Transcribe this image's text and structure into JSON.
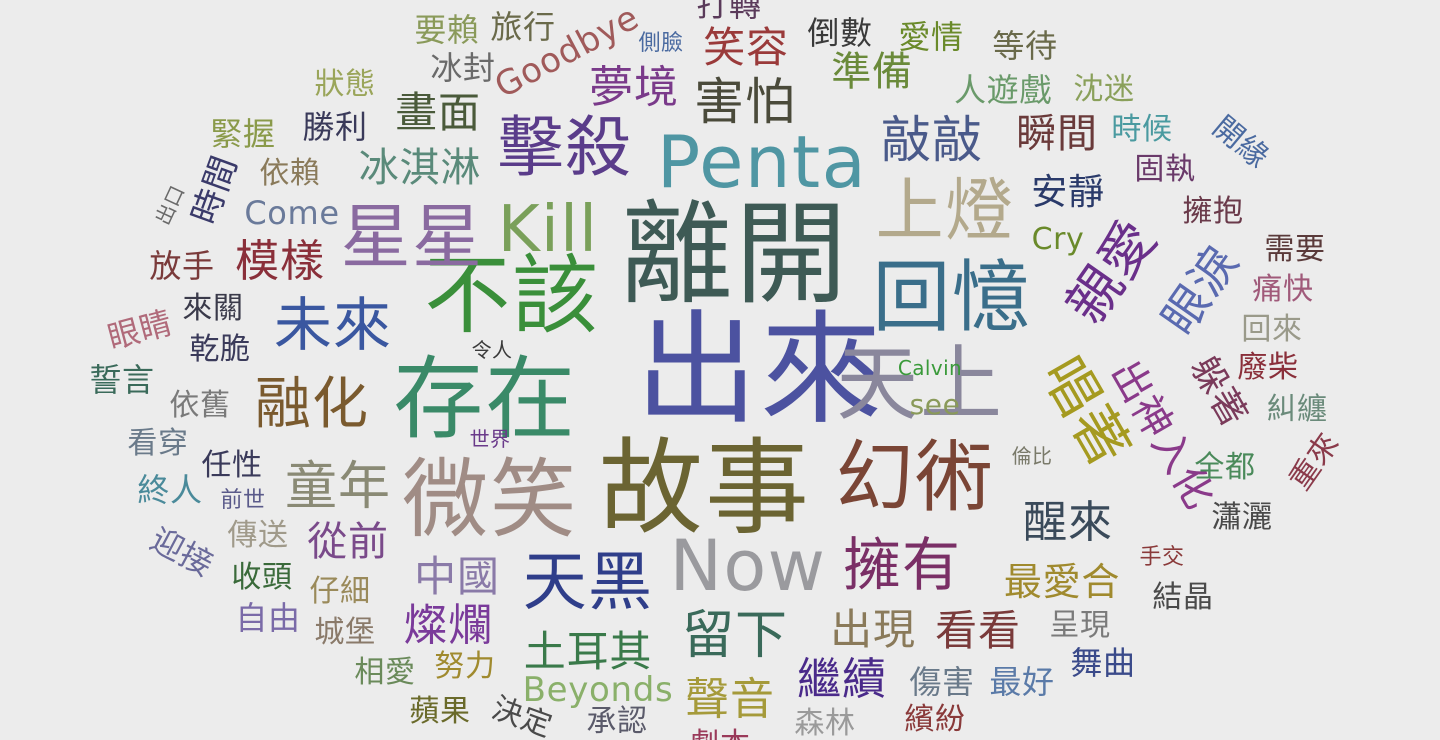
{
  "words": [
    {
      "text": "出來",
      "color": "#4c52a0"
    },
    {
      "text": "離開",
      "color": "#3e5a55"
    },
    {
      "text": "故事",
      "color": "#6b6432"
    },
    {
      "text": "存在",
      "color": "#3a8a68"
    },
    {
      "text": "微笑",
      "color": "#a08c85"
    },
    {
      "text": "幻術",
      "color": "#7a4535"
    },
    {
      "text": "天上",
      "color": "#8a879c"
    },
    {
      "text": "Penta",
      "color": "#4f96a3"
    },
    {
      "text": "不該",
      "color": "#3a8f3a"
    },
    {
      "text": "回憶",
      "color": "#3a6e8a"
    },
    {
      "text": "Kill",
      "color": "#7aa05a"
    },
    {
      "text": "星星",
      "color": "#8a6aa0"
    },
    {
      "text": "擊殺",
      "color": "#5a3c8a"
    },
    {
      "text": "上燈",
      "color": "#b3a98c"
    },
    {
      "text": "未來",
      "color": "#3a57a0"
    },
    {
      "text": "融化",
      "color": "#7a5a2e"
    },
    {
      "text": "Now",
      "color": "#9a9a9e"
    },
    {
      "text": "擁有",
      "color": "#7a2f66"
    },
    {
      "text": "天黑",
      "color": "#2f3e8a"
    },
    {
      "text": "唱著",
      "color": "#a59a20"
    },
    {
      "text": "親愛",
      "color": "#6a2f8a"
    },
    {
      "text": "童年",
      "color": "#8a8a75"
    },
    {
      "text": "留下",
      "color": "#3a6a5a"
    },
    {
      "text": "害怕",
      "color": "#4a4a3a"
    },
    {
      "text": "敲敲",
      "color": "#4a5a8a"
    },
    {
      "text": "醒來",
      "color": "#3a4a5a"
    },
    {
      "text": "眼淚",
      "color": "#5a6ab0"
    },
    {
      "text": "出神入化",
      "color": "#8a3a8a"
    },
    {
      "text": "躲著",
      "color": "#7a3a5a"
    },
    {
      "text": "笑容",
      "color": "#9a3a3a"
    },
    {
      "text": "夢境",
      "color": "#7a3a8a"
    },
    {
      "text": "準備",
      "color": "#6a8a3a"
    },
    {
      "text": "瞬間",
      "color": "#6a3a3a"
    },
    {
      "text": "畫面",
      "color": "#4a5a3a"
    },
    {
      "text": "冰淇淋",
      "color": "#5a8a7a"
    },
    {
      "text": "模樣",
      "color": "#8a2f3a"
    },
    {
      "text": "中國",
      "color": "#8a7aa8"
    },
    {
      "text": "燦爛",
      "color": "#7a3a9a"
    },
    {
      "text": "土耳其",
      "color": "#3a7a4a"
    },
    {
      "text": "聲音",
      "color": "#a59a3a"
    },
    {
      "text": "繼續",
      "color": "#4a2a8a"
    },
    {
      "text": "出現",
      "color": "#8a7a5a"
    },
    {
      "text": "看看",
      "color": "#7a3a3a"
    },
    {
      "text": "最愛合",
      "color": "#a08a2e"
    },
    {
      "text": "從前",
      "color": "#7a4a8a"
    },
    {
      "text": "安靜",
      "color": "#2a3a6a"
    },
    {
      "text": "Goodbye",
      "color": "#a05a5a"
    },
    {
      "text": "Beyonds",
      "color": "#8ab06a"
    },
    {
      "text": "Come",
      "color": "#6a7a9a"
    },
    {
      "text": "Cry",
      "color": "#6a8a2a"
    },
    {
      "text": "see",
      "color": "#8a9a5a"
    },
    {
      "text": "Calvin",
      "color": "#3a9a3a"
    },
    {
      "text": "要賴",
      "color": "#8a9a5a"
    },
    {
      "text": "旅行",
      "color": "#6a6a4a"
    },
    {
      "text": "冰封",
      "color": "#6a6a6a"
    },
    {
      "text": "狀態",
      "color": "#9aa55a"
    },
    {
      "text": "勝利",
      "color": "#3a3a5a"
    },
    {
      "text": "緊握",
      "color": "#8a9a4a"
    },
    {
      "text": "依賴",
      "color": "#8a7a5a"
    },
    {
      "text": "時間",
      "color": "#3a3a6a"
    },
    {
      "text": "出口",
      "color": "#6a6a6a"
    },
    {
      "text": "放手",
      "color": "#7a3a3a"
    },
    {
      "text": "來關",
      "color": "#3a3a4a"
    },
    {
      "text": "眼睛",
      "color": "#b06a7a"
    },
    {
      "text": "乾脆",
      "color": "#3a3a5a"
    },
    {
      "text": "誓言",
      "color": "#3a6a5a"
    },
    {
      "text": "依舊",
      "color": "#7a7a7a"
    },
    {
      "text": "看穿",
      "color": "#6a7a8a"
    },
    {
      "text": "任性",
      "color": "#3a3a5a"
    },
    {
      "text": "終人",
      "color": "#4a8a9a"
    },
    {
      "text": "前世",
      "color": "#5a5a8a"
    },
    {
      "text": "傳送",
      "color": "#a09a8a"
    },
    {
      "text": "迎接",
      "color": "#6a6a9a"
    },
    {
      "text": "收頭",
      "color": "#3a6a3a"
    },
    {
      "text": "仔細",
      "color": "#9a8a5a"
    },
    {
      "text": "自由",
      "color": "#7a6aa8"
    },
    {
      "text": "城堡",
      "color": "#8a7a6a"
    },
    {
      "text": "相愛",
      "color": "#6a8a5a"
    },
    {
      "text": "努力",
      "color": "#a08a2e"
    },
    {
      "text": "蘋果",
      "color": "#6a6a2a"
    },
    {
      "text": "決定",
      "color": "#4a4a4a"
    },
    {
      "text": "承認",
      "color": "#5a5a6a"
    },
    {
      "text": "森林",
      "color": "#9a9a9a"
    },
    {
      "text": "繽紛",
      "color": "#8a3a3a"
    },
    {
      "text": "劇本",
      "color": "#9a3a5a"
    },
    {
      "text": "傷害",
      "color": "#6a7a8a"
    },
    {
      "text": "最好",
      "color": "#5a7aa8"
    },
    {
      "text": "舞曲",
      "color": "#3a4a8a"
    },
    {
      "text": "呈現",
      "color": "#7a7a7a"
    },
    {
      "text": "結晶",
      "color": "#4a4a4a"
    },
    {
      "text": "手交",
      "color": "#8a3a3a"
    },
    {
      "text": "瀟灑",
      "color": "#4a4a4a"
    },
    {
      "text": "全都",
      "color": "#4a8a5a"
    },
    {
      "text": "重來",
      "color": "#8a3a4a"
    },
    {
      "text": "糾纏",
      "color": "#6a8a7a"
    },
    {
      "text": "廢柴",
      "color": "#8a2f3a"
    },
    {
      "text": "回來",
      "color": "#9a9a8a"
    },
    {
      "text": "痛快",
      "color": "#a05a7a"
    },
    {
      "text": "需要",
      "color": "#5a3a3a"
    },
    {
      "text": "擁抱",
      "color": "#6a3a4a"
    },
    {
      "text": "固執",
      "color": "#6a3a6a"
    },
    {
      "text": "開緣",
      "color": "#4a6aa0"
    },
    {
      "text": "時候",
      "color": "#4a9aa0"
    },
    {
      "text": "沈迷",
      "color": "#8aa05a"
    },
    {
      "text": "人遊戲",
      "color": "#6a9a6a"
    },
    {
      "text": "等待",
      "color": "#6a6a4a"
    },
    {
      "text": "愛情",
      "color": "#6a8a2a"
    },
    {
      "text": "倒數",
      "color": "#3a3a3a"
    },
    {
      "text": "側臉",
      "color": "#4a6aa0"
    },
    {
      "text": "打轉",
      "color": "#5a3a5a"
    },
    {
      "text": "令人",
      "color": "#3a3a3a"
    },
    {
      "text": "世界",
      "color": "#6a3a8a"
    },
    {
      "text": "倫比",
      "color": "#7a7a6a"
    }
  ]
}
